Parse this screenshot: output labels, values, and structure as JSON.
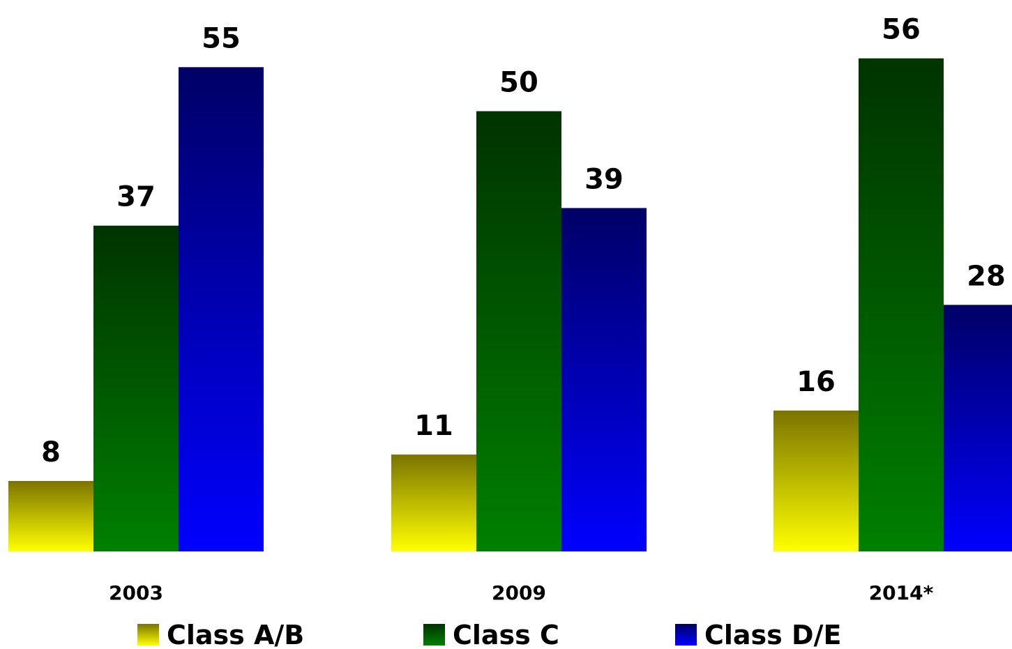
{
  "chart_data": {
    "type": "bar",
    "title": "",
    "xlabel": "",
    "ylabel": "",
    "ylim": [
      0,
      60
    ],
    "grid": false,
    "legend_position": "bottom",
    "categories": [
      "2003",
      "2009",
      "2014*"
    ],
    "series": [
      {
        "name": "Class A/B",
        "values": [
          8,
          11,
          16
        ],
        "color_top": "#7a7400",
        "color_bottom": "#ffff00"
      },
      {
        "name": "Class C",
        "values": [
          37,
          50,
          56
        ],
        "color_top": "#003300",
        "color_bottom": "#008000"
      },
      {
        "name": "Class D/E",
        "values": [
          55,
          39,
          28
        ],
        "color_top": "#000066",
        "color_bottom": "#0000ff"
      }
    ]
  }
}
